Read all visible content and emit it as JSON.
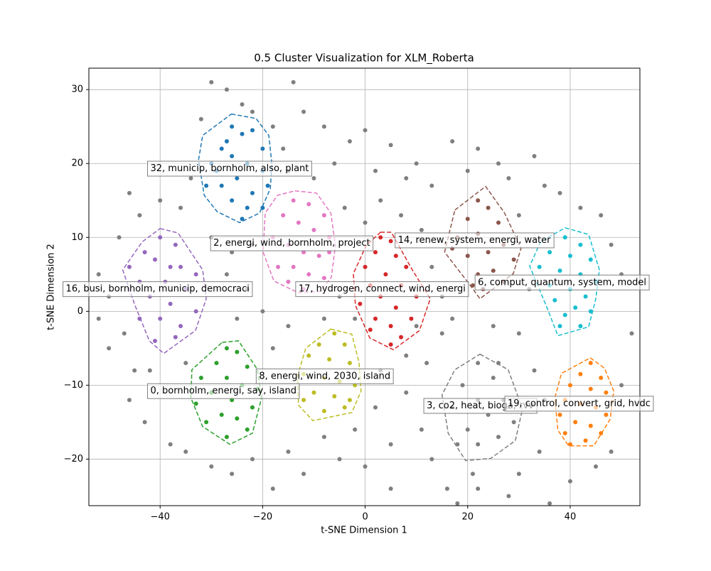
{
  "chart_data": {
    "type": "scatter",
    "title": "0.5 Cluster Visualization for XLM_Roberta",
    "x_label": "t-SNE Dimension 1",
    "y_label": "t-SNE Dimension 2",
    "xlim": [
      -53.9,
      53.6
    ],
    "ylim": [
      -26.3,
      32.9
    ],
    "xticks": [
      {
        "value": -40,
        "label": "−40"
      },
      {
        "value": -20,
        "label": "−20"
      },
      0,
      20,
      40
    ],
    "yticks": [
      {
        "value": -20,
        "label": "−20"
      },
      {
        "value": -10,
        "label": "−10"
      },
      0,
      10,
      20,
      30
    ],
    "grid": true,
    "noise": {
      "color": "#7f7f7f",
      "x": [
        -30,
        -27,
        -24,
        -22,
        -14,
        -18,
        -16,
        -12,
        -8,
        -6,
        -3,
        0,
        2,
        5,
        8,
        10,
        13,
        17,
        20,
        22,
        26,
        28,
        33,
        35,
        -46,
        -44,
        -40,
        -36,
        -34,
        -32,
        -30,
        -26,
        -22,
        -35,
        -42,
        -47,
        -50,
        -52,
        -46,
        -43,
        -38,
        -35,
        -30,
        -26,
        -22,
        -18,
        -15,
        -12,
        -8,
        -5,
        -2,
        2,
        5,
        8,
        11,
        13,
        16,
        18,
        21,
        28,
        30,
        34,
        36,
        40,
        45,
        48,
        50,
        52,
        50,
        48,
        46,
        42,
        38,
        30,
        32,
        30,
        25,
        15,
        12,
        8,
        3,
        -2,
        -5,
        -8,
        -15,
        -18,
        -20,
        -23,
        -27,
        -25,
        -15,
        -10,
        -4,
        0,
        3,
        7,
        11,
        13,
        15,
        17,
        -48,
        -50,
        -45,
        -52,
        0,
        5,
        22,
        26,
        33,
        35,
        10
      ],
      "y": [
        31,
        30,
        28,
        27,
        31,
        25,
        22,
        27,
        25,
        20,
        23,
        24.5,
        19,
        22.5,
        18,
        20,
        17,
        23,
        19,
        22,
        20,
        18,
        21,
        17,
        16,
        13,
        15,
        14,
        18,
        26,
        10,
        8,
        9,
        -7,
        -8,
        -3,
        -5,
        -1,
        -12,
        -15,
        -18,
        -19,
        -21,
        -22,
        -20,
        -24,
        -19,
        -22,
        -17,
        -20,
        -16,
        -13,
        -18,
        -11,
        -16,
        -20,
        -24,
        -26,
        -22,
        -25,
        -22,
        -19,
        -26,
        -23,
        -21,
        -19,
        -10,
        -3,
        5,
        9,
        13,
        14,
        16,
        13,
        3,
        -3,
        -2,
        -3,
        -7,
        -6,
        -8,
        -1,
        2,
        -1,
        -2,
        -5,
        0,
        3,
        5,
        -1,
        19,
        18,
        14,
        12,
        15,
        13,
        11,
        6,
        2,
        -1,
        10,
        2,
        -8,
        5,
        -21,
        -24,
        -24,
        -7,
        -8,
        -12,
        -2
      ]
    },
    "series": [
      {
        "name": "32, municip, bornholm, also, plant",
        "color": "#1f77b4",
        "label_x": -41.9,
        "label_y": 19.3,
        "x": [
          -26,
          -24,
          -22,
          -20,
          -28,
          -30,
          -26,
          -23,
          -20,
          -25,
          -28,
          -31,
          -22,
          -26,
          -23,
          -20,
          -29,
          -24,
          -19,
          -27
        ],
        "y": [
          25,
          24,
          24.5,
          22,
          22,
          20,
          21,
          20,
          19,
          18,
          17,
          17,
          16,
          15,
          14,
          14,
          19,
          12.5,
          17,
          23
        ],
        "hull_x": [
          -26.1,
          -21.3,
          -18.8,
          -18.2,
          -18.5,
          -20.6,
          -24.5,
          -28.9,
          -31.4,
          -32.5,
          -31.7
        ],
        "hull_y": [
          26.7,
          26.1,
          23.8,
          20.0,
          16.6,
          13.3,
          12.0,
          13.5,
          15.7,
          20.5,
          23.8
        ]
      },
      {
        "name": "2, energi, wind, bornholm, project",
        "color": "#e377c2",
        "label_x": -29.6,
        "label_y": 9.2,
        "x": [
          -14,
          -11,
          -8,
          -16,
          -13,
          -10,
          -7,
          -18,
          -15,
          -12,
          -9,
          -17,
          -14,
          -11,
          -8,
          -15,
          -12,
          -7
        ],
        "y": [
          15,
          14.5,
          13,
          13,
          12,
          11,
          10,
          10,
          9,
          8,
          7.5,
          6,
          6,
          5,
          4.5,
          4,
          3,
          8
        ],
        "hull_x": [
          -13.7,
          -9.5,
          -6.7,
          -5.8,
          -6.6,
          -8.8,
          -13.0,
          -17.8,
          -19.9,
          -19.5,
          -17.1
        ],
        "hull_y": [
          16.3,
          16.0,
          13.3,
          8.9,
          4.6,
          2.7,
          2.5,
          4.1,
          8.0,
          13.3,
          15.7
        ]
      },
      {
        "name": "16, busi, bornholm, municip, democraci",
        "color": "#9467bd",
        "label_x": -58.4,
        "label_y": 3.0,
        "x": [
          -40,
          -37,
          -43,
          -46,
          -41,
          -36,
          -33,
          -44,
          -39,
          -35,
          -42,
          -38,
          -33,
          -44,
          -40,
          -36,
          -41,
          -37,
          -38
        ],
        "y": [
          10,
          9,
          8,
          6,
          7,
          6,
          5,
          4,
          4,
          3,
          2,
          1,
          0,
          -1,
          -1,
          -2,
          -4,
          -3.5,
          6
        ],
        "hull_x": [
          -40,
          -36.5,
          -31.7,
          -31.0,
          -33.1,
          -39.3,
          -42.1,
          -44.9,
          -47.3,
          -43.5
        ],
        "hull_y": [
          11.2,
          10.6,
          5.6,
          1.7,
          -2.6,
          -5.7,
          -4.0,
          0.8,
          5.6,
          9.4
        ]
      },
      {
        "name": "17, hydrogen, connect, wind, energi",
        "color": "#d62728",
        "label_x": -13.0,
        "label_y": 3.0,
        "x": [
          3,
          5,
          2,
          6,
          8,
          0,
          4,
          1,
          7,
          10,
          3,
          -1,
          6,
          2,
          9,
          5,
          1,
          7,
          5
        ],
        "y": [
          10,
          9.5,
          8,
          7.5,
          6,
          6,
          5,
          3.5,
          3.5,
          2,
          2,
          1,
          0.5,
          -1,
          -1,
          -2,
          -2.5,
          -3.5,
          -4.5
        ],
        "hull_x": [
          3.0,
          5.1,
          9.2,
          12.7,
          10.6,
          5.5,
          0.9,
          -1.9,
          -2.3,
          0.2
        ],
        "hull_y": [
          10.7,
          10.7,
          5.6,
          1.7,
          -2.6,
          -5.2,
          -3.6,
          0.8,
          5.1,
          8.9
        ]
      },
      {
        "name": "14, renew, system, energi, water",
        "color": "#8c564b",
        "label_x": 6.4,
        "label_y": 9.6,
        "x": [
          22,
          24,
          20,
          26,
          18,
          22,
          27,
          24,
          20,
          17,
          29,
          25,
          22,
          27,
          23,
          21
        ],
        "y": [
          15,
          14,
          12.5,
          12,
          10,
          10.5,
          9,
          8,
          7.5,
          8.5,
          7,
          5.5,
          5,
          4,
          3,
          3.5
        ],
        "hull_x": [
          17.5,
          23.5,
          27.2,
          30.4,
          28.9,
          22.4,
          20.3,
          15.5
        ],
        "hull_y": [
          13.7,
          16.9,
          13.3,
          8.5,
          5.1,
          1.7,
          3.7,
          8.0
        ]
      },
      {
        "name": "6, comput, quantum, system, model",
        "color": "#17becf",
        "label_x": 22.0,
        "label_y": 3.9,
        "x": [
          39,
          42,
          36,
          40,
          44,
          34,
          38,
          42,
          45,
          36,
          40,
          43,
          37,
          41,
          39,
          44,
          38,
          42
        ],
        "y": [
          10,
          9,
          8,
          7.5,
          7,
          6,
          5.5,
          5,
          4,
          3.5,
          3,
          2,
          1.5,
          0.5,
          -0.5,
          0,
          -2,
          -2
        ],
        "hull_x": [
          39.0,
          43.6,
          45.7,
          45.0,
          43.6,
          37.6,
          35.3,
          32.1,
          34.2
        ],
        "hull_y": [
          11.3,
          10.4,
          5.6,
          1.7,
          -2.1,
          -3.3,
          0.8,
          6.1,
          9.4
        ]
      },
      {
        "name": "3, co2, heat, bioga, rvv",
        "color": "#7f7f7f",
        "label_x": 12.0,
        "label_y": -12.8,
        "x": [
          22,
          25,
          19,
          27,
          22,
          17,
          24,
          29,
          20,
          26,
          22,
          18,
          28
        ],
        "y": [
          -7,
          -9,
          -10,
          -12,
          -12,
          -13,
          -14,
          -15,
          -16,
          -17,
          -18,
          -18,
          -13
        ],
        "hull_x": [
          22.4,
          27.9,
          30.7,
          29.3,
          24.5,
          19.6,
          16.2,
          15.0,
          17.5
        ],
        "hull_y": [
          -5.8,
          -7.9,
          -13.2,
          -17.5,
          -19.9,
          -20.2,
          -16.5,
          -11.3,
          -7.9
        ]
      },
      {
        "name": "19, control, convert, grid, hvdc",
        "color": "#ff7f0e",
        "label_x": 27.8,
        "label_y": -12.5,
        "x": [
          44,
          42,
          46,
          40,
          44,
          47,
          39,
          42,
          45,
          38,
          41,
          44,
          47,
          39,
          43,
          46,
          40
        ],
        "y": [
          -7,
          -8.5,
          -9,
          -10,
          -10.5,
          -11,
          -12,
          -12.5,
          -13,
          -14,
          -15,
          -15.5,
          -14,
          -16.5,
          -17.5,
          -16.5,
          -18
        ],
        "hull_x": [
          43.9,
          46.7,
          48.5,
          47.8,
          44.6,
          39.7,
          37.6,
          37.0,
          38.3
        ],
        "hull_y": [
          -6.3,
          -7.7,
          -10.8,
          -14.6,
          -18.2,
          -18.2,
          -16.1,
          -11.7,
          -8.4
        ]
      },
      {
        "name": "8, energi, wind, 2030, island",
        "color": "#bcbd22",
        "label_x": -20.7,
        "label_y": -8.8,
        "x": [
          -6,
          -9,
          -4,
          -11,
          -7,
          -3,
          -12,
          -8,
          -5,
          -2,
          -10,
          -6,
          -3,
          -12,
          -8,
          -4
        ],
        "y": [
          -3,
          -4.5,
          -4.5,
          -6,
          -6.5,
          -7,
          -8.5,
          -9,
          -9.5,
          -10,
          -11,
          -11.5,
          -12,
          -12,
          -13.5,
          -13
        ],
        "hull_x": [
          -6.7,
          -2.6,
          -1.2,
          -0.8,
          -2.6,
          -10.2,
          -13.0,
          -13.2,
          -11.6
        ],
        "hull_y": [
          -2.4,
          -3.1,
          -6.9,
          -10.8,
          -13.7,
          -14.8,
          -12.7,
          -8.8,
          -5.0
        ]
      },
      {
        "name": "0, bornholm, energi, say, island",
        "color": "#2ca02c",
        "label_x": -41.9,
        "label_y": -10.8,
        "x": [
          -27,
          -25,
          -29,
          -23,
          -32,
          -27,
          -24,
          -21,
          -30,
          -26,
          -33,
          -22,
          -28,
          -25,
          -31,
          -23,
          -27
        ],
        "y": [
          -5,
          -5.5,
          -7,
          -7.5,
          -9,
          -9,
          -10,
          -10.5,
          -11,
          -12,
          -12.5,
          -13,
          -14,
          -14.5,
          -15,
          -16,
          -17
        ],
        "hull_x": [
          -27.9,
          -24.7,
          -21.0,
          -20.2,
          -22.0,
          -26.4,
          -31.7,
          -34.0,
          -33.8
        ],
        "hull_y": [
          -4.2,
          -4.0,
          -7.9,
          -11.7,
          -16.5,
          -18.0,
          -15.6,
          -11.7,
          -7.9
        ]
      }
    ]
  }
}
